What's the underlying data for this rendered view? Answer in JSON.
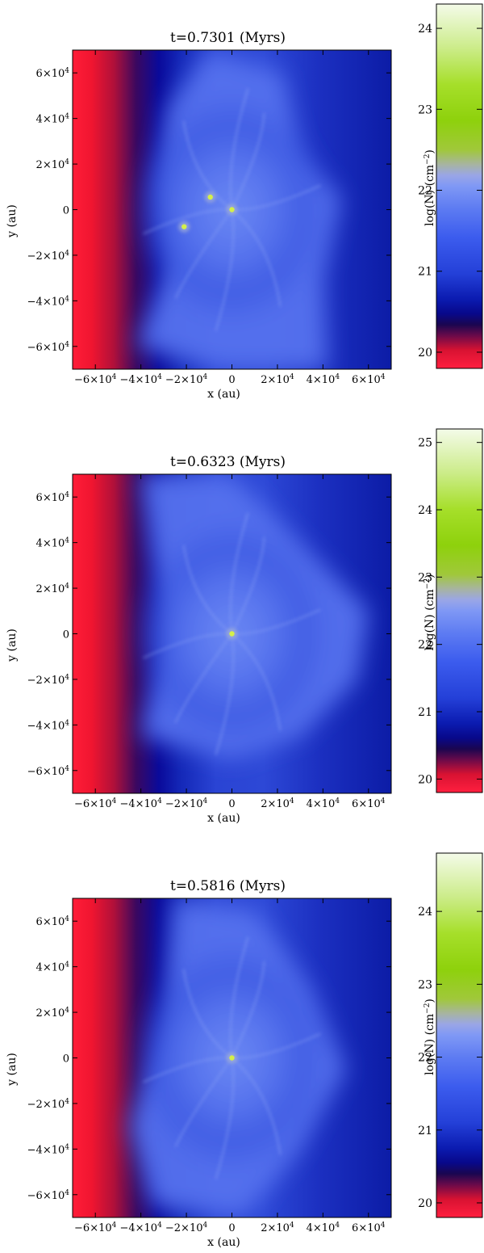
{
  "chart_data": [
    {
      "type": "heatmap",
      "title": "t=0.7301 (Myrs)",
      "xlabel": "x (au)",
      "ylabel": "y (au)",
      "xlim": [
        -70000,
        70000
      ],
      "ylim": [
        -70000,
        70000
      ],
      "x_ticks": [
        -60000,
        -40000,
        -20000,
        0,
        20000,
        40000,
        60000
      ],
      "y_ticks": [
        -60000,
        -40000,
        -20000,
        0,
        20000,
        40000,
        60000
      ],
      "colorbar": {
        "label": "log(N) (cm⁻²)",
        "range": [
          19.8,
          24.3
        ],
        "ticks": [
          "20",
          "21",
          "22",
          "23",
          "24"
        ],
        "tick_values": [
          20,
          21,
          22,
          23,
          24
        ]
      },
      "colors": {
        "dense": "#d4ef4a",
        "diffuse": "#5a72f0",
        "background_low": "#ff1e3a",
        "background_mid": "#0a1aa8"
      },
      "cores_au": [
        [
          0,
          0
        ],
        [
          -9500,
          5500
        ],
        [
          -21000,
          -7500
        ]
      ]
    },
    {
      "type": "heatmap",
      "title": "t=0.6323 (Myrs)",
      "xlabel": "x (au)",
      "ylabel": "y (au)",
      "xlim": [
        -70000,
        70000
      ],
      "ylim": [
        -70000,
        70000
      ],
      "x_ticks": [
        -60000,
        -40000,
        -20000,
        0,
        20000,
        40000,
        60000
      ],
      "y_ticks": [
        -60000,
        -40000,
        -20000,
        0,
        20000,
        40000,
        60000
      ],
      "colorbar": {
        "label": "log(N) (cm⁻²)",
        "range": [
          19.8,
          25.2
        ],
        "ticks": [
          "20",
          "21",
          "22",
          "23",
          "24",
          "25"
        ],
        "tick_values": [
          20,
          21,
          22,
          23,
          24,
          25
        ]
      },
      "colors": {
        "dense": "#d4ef4a",
        "diffuse": "#5a72f0",
        "background_low": "#ff1e3a",
        "background_mid": "#0a1aa8"
      },
      "cores_au": [
        [
          0,
          0
        ]
      ]
    },
    {
      "type": "heatmap",
      "title": "t=0.5816 (Myrs)",
      "xlabel": "x (au)",
      "ylabel": "y (au)",
      "xlim": [
        -70000,
        70000
      ],
      "ylim": [
        -70000,
        70000
      ],
      "x_ticks": [
        -60000,
        -40000,
        -20000,
        0,
        20000,
        40000,
        60000
      ],
      "y_ticks": [
        -60000,
        -40000,
        -20000,
        0,
        20000,
        40000,
        60000
      ],
      "colorbar": {
        "label": "log(N) (cm⁻²)",
        "range": [
          19.8,
          24.8
        ],
        "ticks": [
          "20",
          "21",
          "22",
          "23",
          "24"
        ],
        "tick_values": [
          20,
          21,
          22,
          23,
          24
        ]
      },
      "colors": {
        "dense": "#d4ef4a",
        "diffuse": "#5a72f0",
        "background_low": "#ff1e3a",
        "background_mid": "#0a1aa8"
      },
      "cores_au": [
        [
          0,
          0
        ]
      ]
    }
  ]
}
